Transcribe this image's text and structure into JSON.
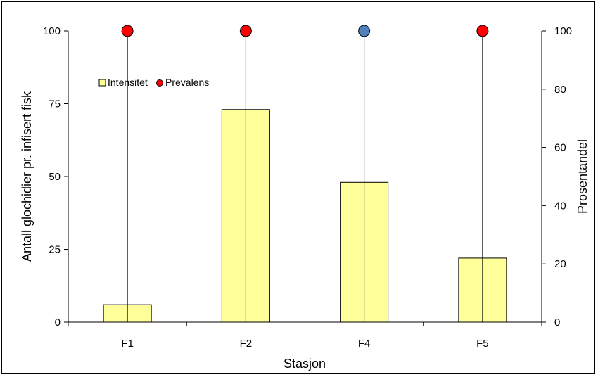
{
  "chart_data": {
    "type": "bar",
    "categories": [
      "F1",
      "F2",
      "F4",
      "F5"
    ],
    "series": [
      {
        "name": "Intensitet",
        "type": "bar",
        "axis": "left",
        "values": [
          6,
          73,
          48,
          22
        ],
        "color": "#ffff99"
      },
      {
        "name": "Prevalens",
        "type": "scatter",
        "axis": "right",
        "values": [
          100,
          100,
          100,
          100
        ],
        "color": "#ff0000",
        "point_colors": [
          "#ff0000",
          "#ff0000",
          "#4f81bd",
          "#ff0000"
        ]
      }
    ],
    "xlabel": "Stasjon",
    "ylabel": "Antall glochidier pr. infisert fisk",
    "y2label": "Prosentandel",
    "ylim": [
      0,
      100
    ],
    "y2lim": [
      0,
      100
    ],
    "yticks": [
      0,
      25,
      50,
      75,
      100
    ],
    "y2ticks": [
      0,
      20,
      40,
      60,
      80,
      100
    ],
    "legend_placement": "top-left",
    "grid": false
  }
}
